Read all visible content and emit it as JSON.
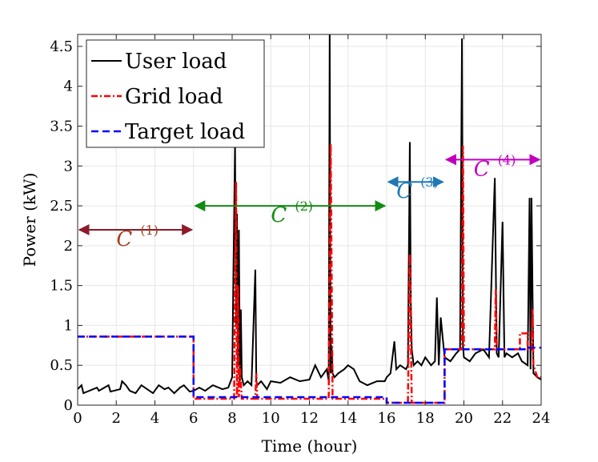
{
  "chart_data": {
    "type": "line",
    "title": "",
    "xlabel": "Time (hour)",
    "ylabel": "Power (kW)",
    "xlim": [
      0,
      24
    ],
    "ylim": [
      0,
      4.65
    ],
    "xticks": [
      0,
      2,
      4,
      6,
      8,
      10,
      12,
      14,
      16,
      18,
      20,
      22,
      24
    ],
    "yticks": [
      0,
      0.5,
      1,
      1.5,
      2,
      2.5,
      3,
      3.5,
      4,
      4.5
    ],
    "ytick_labels": [
      "0",
      "0.5",
      "1",
      "1.5",
      "2",
      "2.5",
      "3",
      "3.5",
      "4",
      "4.5"
    ],
    "grid": true,
    "legend_position": "top-left",
    "series": [
      {
        "name": "User load",
        "color": "#000000",
        "style": "solid",
        "x": [
          0,
          0.2,
          0.3,
          1.0,
          1.1,
          1.6,
          1.7,
          2.2,
          2.3,
          2.5,
          2.7,
          3.0,
          3.3,
          3.6,
          3.9,
          4.2,
          4.5,
          4.7,
          5.0,
          5.3,
          5.5,
          5.8,
          6.0,
          6.3,
          6.6,
          7.0,
          7.5,
          7.8,
          8.0,
          8.15,
          8.2,
          8.25,
          8.3,
          8.35,
          8.4,
          8.45,
          8.5,
          8.6,
          8.8,
          9.0,
          9.2,
          9.25,
          9.3,
          9.5,
          9.8,
          10.0,
          10.5,
          11.0,
          11.5,
          12.0,
          12.3,
          12.6,
          12.9,
          13.0,
          13.05,
          13.1,
          13.15,
          13.2,
          13.3,
          13.5,
          13.8,
          14.0,
          14.3,
          14.6,
          15.0,
          15.5,
          15.9,
          16.0,
          16.2,
          16.4,
          16.5,
          16.7,
          17.0,
          17.1,
          17.2,
          17.25,
          17.3,
          17.4,
          17.6,
          17.8,
          18.0,
          18.3,
          18.5,
          18.6,
          18.7,
          18.8,
          19.0,
          19.3,
          19.6,
          19.8,
          19.9,
          19.95,
          20.0,
          20.3,
          20.6,
          21.0,
          21.3,
          21.6,
          21.7,
          21.8,
          22.0,
          22.1,
          22.2,
          22.5,
          22.8,
          23.0,
          23.3,
          23.4,
          23.45,
          23.5,
          23.6,
          23.8,
          24.0
        ],
        "y": [
          0.2,
          0.25,
          0.15,
          0.22,
          0.18,
          0.25,
          0.17,
          0.2,
          0.3,
          0.25,
          0.18,
          0.15,
          0.25,
          0.2,
          0.15,
          0.25,
          0.2,
          0.22,
          0.15,
          0.22,
          0.25,
          0.17,
          0.18,
          0.22,
          0.18,
          0.25,
          0.2,
          0.22,
          0.35,
          3.3,
          1.0,
          2.4,
          0.5,
          2.2,
          0.3,
          1.2,
          0.35,
          0.25,
          0.3,
          0.25,
          1.7,
          0.3,
          0.25,
          0.3,
          0.2,
          0.3,
          0.28,
          0.35,
          0.3,
          0.32,
          0.5,
          0.35,
          0.45,
          0.3,
          4.7,
          0.4,
          0.75,
          0.4,
          0.35,
          0.4,
          0.45,
          0.5,
          0.45,
          0.3,
          0.25,
          0.3,
          0.3,
          0.35,
          0.4,
          0.8,
          0.45,
          0.5,
          0.45,
          0.5,
          3.3,
          1.3,
          0.7,
          0.5,
          0.55,
          0.5,
          0.6,
          0.5,
          0.55,
          1.35,
          0.5,
          1.1,
          0.6,
          0.55,
          0.65,
          0.7,
          4.6,
          0.75,
          0.6,
          0.55,
          0.65,
          0.7,
          0.6,
          2.85,
          0.65,
          0.6,
          2.3,
          0.6,
          0.65,
          0.6,
          0.65,
          0.55,
          0.5,
          2.6,
          0.45,
          2.6,
          0.4,
          0.35,
          0.32
        ]
      },
      {
        "name": "Grid load",
        "color": "#ff0000",
        "style": "dash-dot",
        "x": [
          0,
          6,
          6,
          8.1,
          8.2,
          8.25,
          8.3,
          8.35,
          8.4,
          8.5,
          9.2,
          9.25,
          9.3,
          13.0,
          13.1,
          13.2,
          16.0,
          16.0,
          17.1,
          17.2,
          17.3,
          19.0,
          19.0,
          19.9,
          19.95,
          20.0,
          21.6,
          21.65,
          21.7,
          22.9,
          22.9,
          23.3,
          23.3,
          23.5,
          23.55,
          23.6,
          23.8,
          24.0
        ],
        "y": [
          0.86,
          0.86,
          0.08,
          0.08,
          2.8,
          0.1,
          1.5,
          0.1,
          0.5,
          0.08,
          0.08,
          0.4,
          0.08,
          0.08,
          3.28,
          0.08,
          0.08,
          0.03,
          0.03,
          1.9,
          0.03,
          0.03,
          0.7,
          0.7,
          3.25,
          0.7,
          0.7,
          1.45,
          0.7,
          0.7,
          0.9,
          0.9,
          0.7,
          0.7,
          1.2,
          0.5,
          0.35,
          0.35
        ]
      },
      {
        "name": "Target load",
        "color": "#0000ff",
        "style": "dashed",
        "x": [
          0,
          6,
          6,
          16,
          16,
          19,
          19,
          23.3,
          23.3,
          24
        ],
        "y": [
          0.86,
          0.86,
          0.1,
          0.1,
          0.03,
          0.03,
          0.7,
          0.7,
          0.72,
          0.72
        ]
      }
    ],
    "annotations": [
      {
        "label": "C",
        "sup": "(1)",
        "x_start": 0,
        "x_end": 6,
        "y": 2.2,
        "color": "#8b1a2b",
        "text_color": "#a0421e"
      },
      {
        "label": "C",
        "sup": "(2)",
        "x_start": 6,
        "x_end": 16,
        "y": 2.5,
        "color": "#138b13",
        "text_color": "#138b13"
      },
      {
        "label": "C",
        "sup": "(3)",
        "x_start": 16,
        "x_end": 19,
        "y": 2.8,
        "color": "#1f77b4",
        "text_color": "#1f77b4"
      },
      {
        "label": "C",
        "sup": "(4)",
        "x_start": 19,
        "x_end": 24,
        "y": 3.08,
        "color": "#c000c0",
        "text_color": "#c000c0"
      }
    ]
  }
}
